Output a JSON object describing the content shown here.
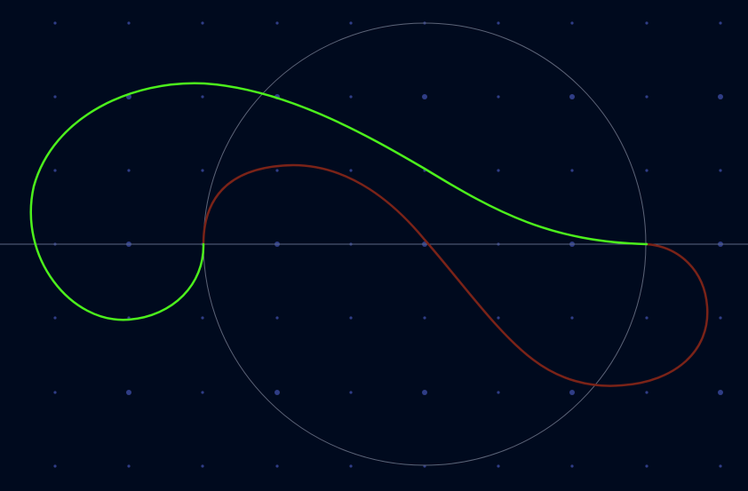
{
  "colors": {
    "background": "#000a1e",
    "grid_dot": "#2f3d86",
    "axis_line": "#5c6784",
    "unit_circle": "#5c6478",
    "curve_green": "#4cf01c",
    "curve_red": "#7a2318"
  },
  "diagram": {
    "axis": "horizontal",
    "circle": "unit-circle",
    "curves": [
      {
        "name": "green-curve",
        "color_key": "curve_green"
      },
      {
        "name": "red-curve",
        "color_key": "curve_red"
      }
    ]
  }
}
